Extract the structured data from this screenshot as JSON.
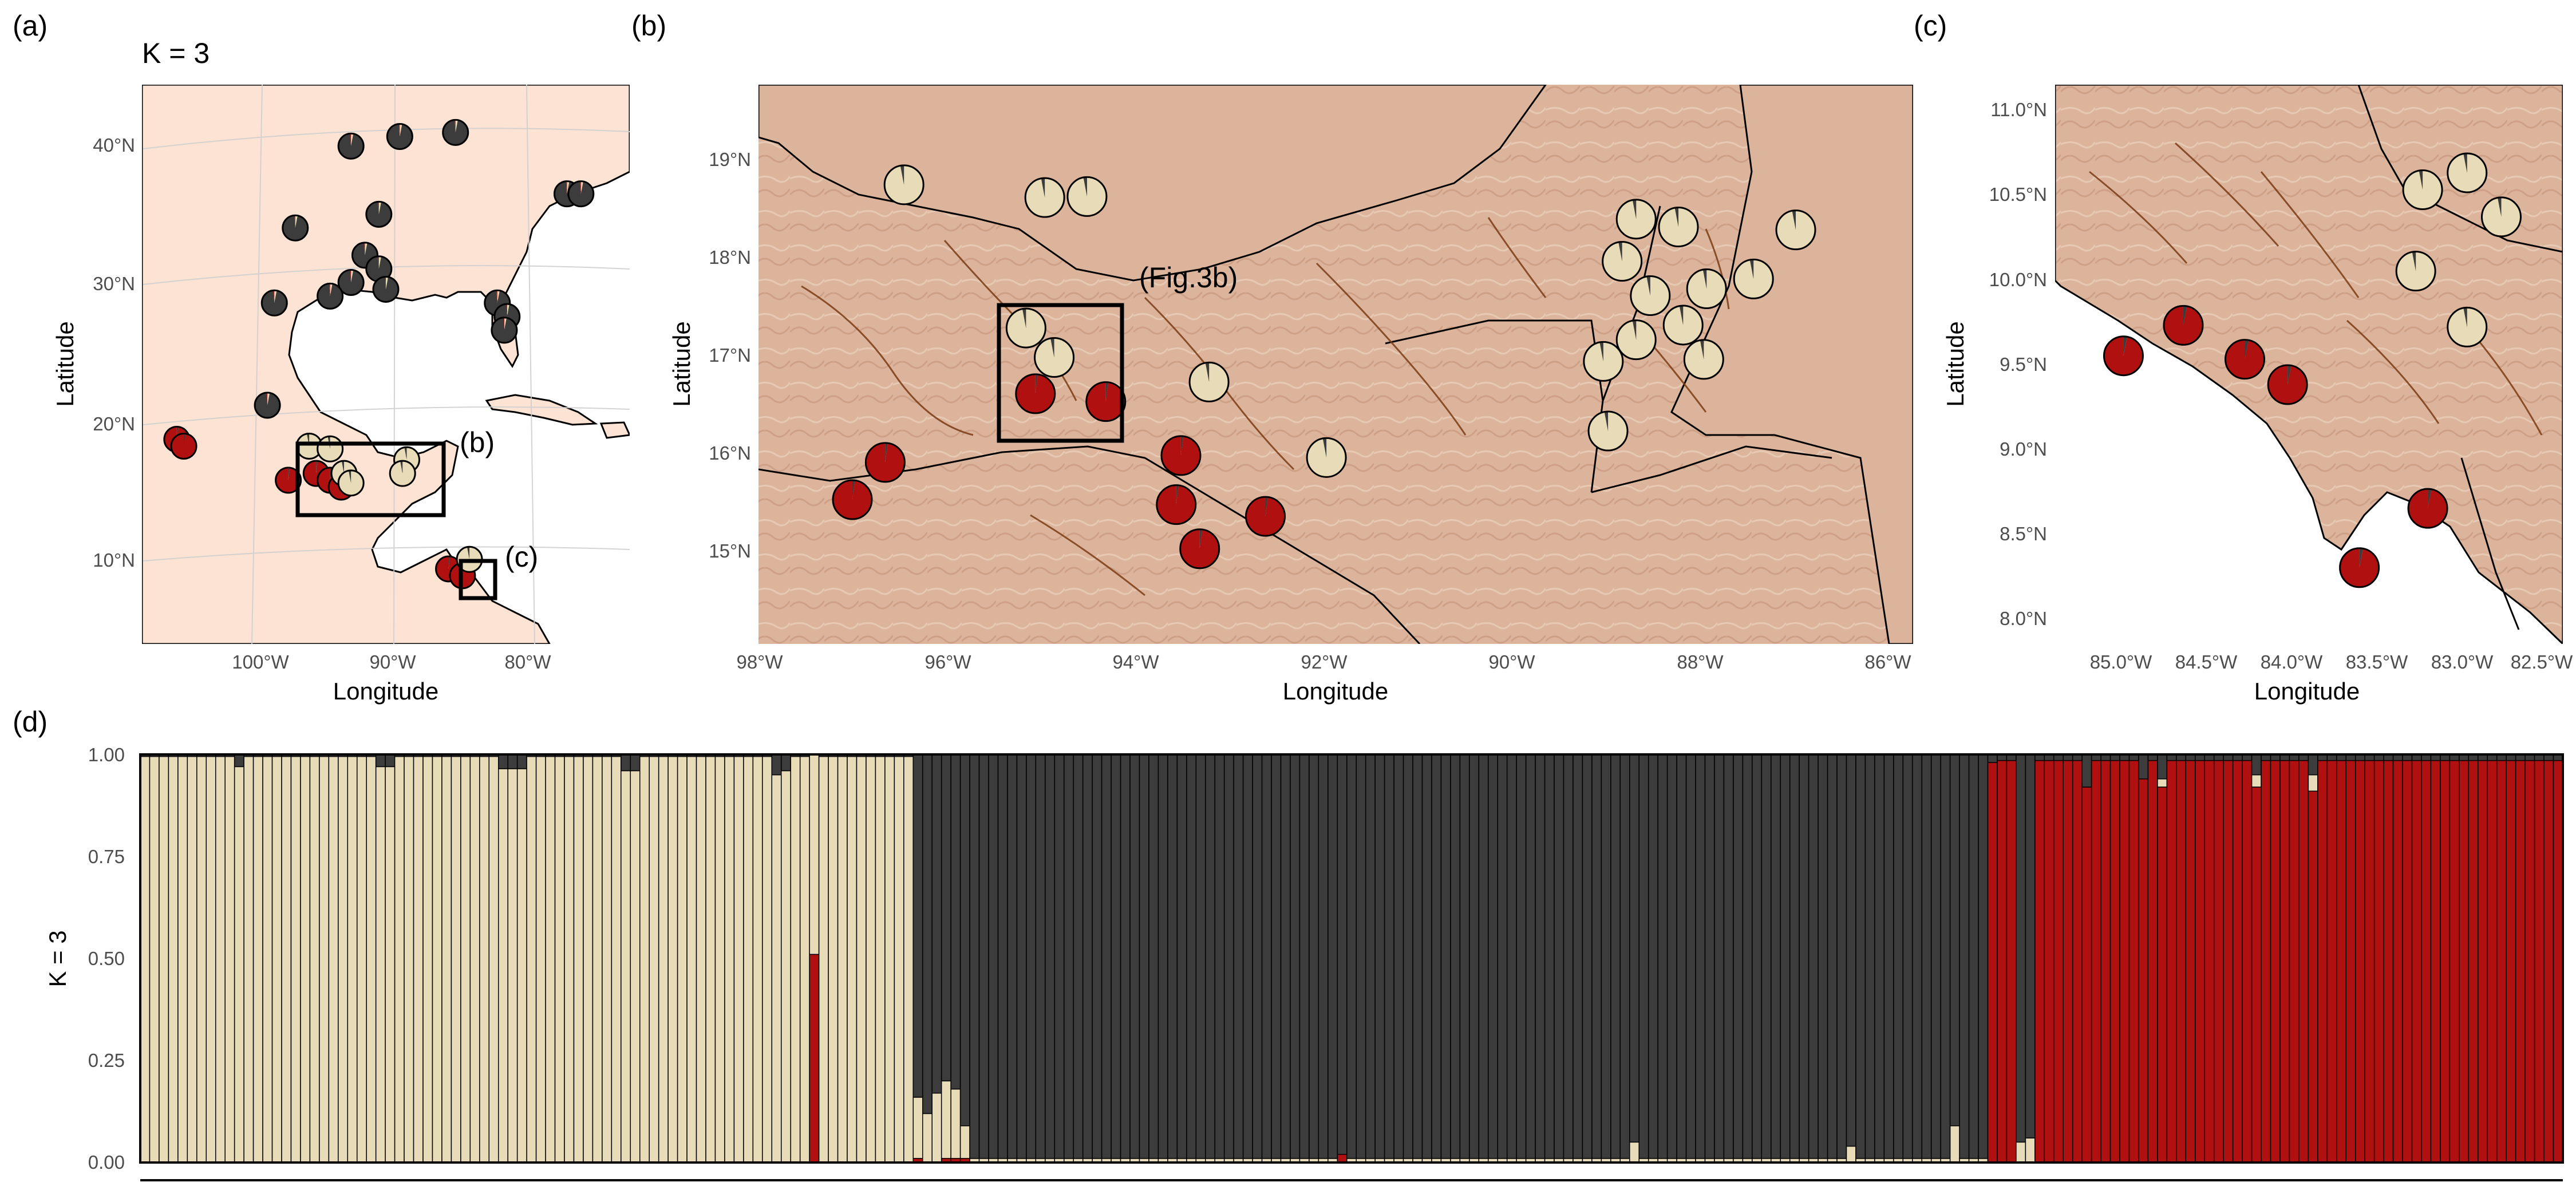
{
  "colors": {
    "cluster1": "#e8dcb8",
    "cluster2": "#3c3c3c",
    "cluster3": "#b01010",
    "land_a": "#fde3d3",
    "terrain": "#dcb49c",
    "ocean": "#ffffff",
    "river": "#7a3c14"
  },
  "chart_data": [
    {
      "panel": "(a)",
      "type": "scatter",
      "title": "K =  3",
      "xlabel": "Longitude",
      "ylabel": "Latitude",
      "xlim": [
        -107,
        -72
      ],
      "ylim": [
        4,
        45
      ],
      "x_ticks": [
        "100°W",
        "90°W",
        "80°W"
      ],
      "y_ticks": [
        "10°N",
        "20°N",
        "30°N",
        "40°N"
      ],
      "annotations": [
        "(b)",
        "(c)"
      ],
      "points": [
        {
          "lon": -92.0,
          "lat": 40.5,
          "q": [
            0.03,
            0.96,
            0.01
          ]
        },
        {
          "lon": -88.5,
          "lat": 41.2,
          "q": [
            0.03,
            0.96,
            0.01
          ]
        },
        {
          "lon": -84.5,
          "lat": 41.5,
          "q": [
            0.03,
            0.96,
            0.01
          ]
        },
        {
          "lon": -96.0,
          "lat": 34.5,
          "q": [
            0.03,
            0.96,
            0.01
          ]
        },
        {
          "lon": -90.0,
          "lat": 35.5,
          "q": [
            0.03,
            0.96,
            0.01
          ]
        },
        {
          "lon": -91.0,
          "lat": 32.5,
          "q": [
            0.03,
            0.96,
            0.01
          ]
        },
        {
          "lon": -90.0,
          "lat": 31.5,
          "q": [
            0.03,
            0.96,
            0.01
          ]
        },
        {
          "lon": -92.0,
          "lat": 30.5,
          "q": [
            0.03,
            0.96,
            0.01
          ]
        },
        {
          "lon": -93.5,
          "lat": 29.5,
          "q": [
            0.03,
            0.96,
            0.01
          ]
        },
        {
          "lon": -89.5,
          "lat": 30.0,
          "q": [
            0.03,
            0.96,
            0.01
          ]
        },
        {
          "lon": -97.5,
          "lat": 29.0,
          "q": [
            0.03,
            0.96,
            0.01
          ]
        },
        {
          "lon": -81.5,
          "lat": 29.0,
          "q": [
            0.03,
            0.96,
            0.01
          ]
        },
        {
          "lon": -80.8,
          "lat": 28.0,
          "q": [
            0.03,
            0.96,
            0.01
          ]
        },
        {
          "lon": -81.0,
          "lat": 27.0,
          "q": [
            0.03,
            0.96,
            0.01
          ]
        },
        {
          "lon": -76.5,
          "lat": 37.0,
          "q": [
            0.03,
            0.96,
            0.01
          ]
        },
        {
          "lon": -75.5,
          "lat": 37.0,
          "q": [
            0.03,
            0.96,
            0.01
          ]
        },
        {
          "lon": -98.0,
          "lat": 21.5,
          "q": [
            0.03,
            0.96,
            0.01
          ]
        },
        {
          "lon": -104.5,
          "lat": 19.0,
          "q": [
            0.0,
            0.02,
            0.98
          ]
        },
        {
          "lon": -104.0,
          "lat": 18.5,
          "q": [
            0.0,
            0.02,
            0.98
          ]
        },
        {
          "lon": -96.5,
          "lat": 16.0,
          "q": [
            0.0,
            0.02,
            0.98
          ]
        },
        {
          "lon": -94.5,
          "lat": 16.5,
          "q": [
            0.0,
            0.02,
            0.98
          ]
        },
        {
          "lon": -93.5,
          "lat": 16.0,
          "q": [
            0.0,
            0.02,
            0.98
          ]
        },
        {
          "lon": -92.7,
          "lat": 15.5,
          "q": [
            0.0,
            0.02,
            0.98
          ]
        },
        {
          "lon": -95.0,
          "lat": 18.5,
          "q": [
            0.97,
            0.03,
            0.0
          ]
        },
        {
          "lon": -93.5,
          "lat": 18.3,
          "q": [
            0.97,
            0.03,
            0.0
          ]
        },
        {
          "lon": -92.5,
          "lat": 16.5,
          "q": [
            0.97,
            0.03,
            0.0
          ]
        },
        {
          "lon": -88.0,
          "lat": 17.5,
          "q": [
            0.97,
            0.03,
            0.0
          ]
        },
        {
          "lon": -88.3,
          "lat": 16.5,
          "q": [
            0.97,
            0.03,
            0.0
          ]
        },
        {
          "lon": -92.0,
          "lat": 15.8,
          "q": [
            0.97,
            0.03,
            0.0
          ]
        },
        {
          "lon": -85.0,
          "lat": 9.5,
          "q": [
            0.0,
            0.02,
            0.98
          ]
        },
        {
          "lon": -84.0,
          "lat": 9.0,
          "q": [
            0.0,
            0.02,
            0.98
          ]
        },
        {
          "lon": -83.5,
          "lat": 10.2,
          "q": [
            0.97,
            0.03,
            0.0
          ]
        }
      ]
    },
    {
      "panel": "(b)",
      "type": "scatter",
      "title": "",
      "xlabel": "Longitude",
      "ylabel": "Latitude",
      "xlim": [
        -98.05,
        -85.75
      ],
      "ylim": [
        14.0,
        19.7
      ],
      "x_ticks": [
        "98°W",
        "96°W",
        "94°W",
        "92°W",
        "90°W",
        "88°W",
        "86°W"
      ],
      "y_ticks": [
        "15°N",
        "16°N",
        "17°N",
        "18°N",
        "19°N"
      ],
      "annotations": [
        "(Fig.3b)"
      ],
      "points": [
        {
          "lon": -96.5,
          "lat": 18.68,
          "q": [
            0.97,
            0.03,
            0.0
          ]
        },
        {
          "lon": -95.0,
          "lat": 18.55,
          "q": [
            0.97,
            0.03,
            0.0
          ]
        },
        {
          "lon": -94.55,
          "lat": 18.56,
          "q": [
            0.97,
            0.03,
            0.0
          ]
        },
        {
          "lon": -95.2,
          "lat": 17.22,
          "q": [
            0.97,
            0.03,
            0.0
          ]
        },
        {
          "lon": -94.9,
          "lat": 16.92,
          "q": [
            0.97,
            0.03,
            0.0
          ]
        },
        {
          "lon": -93.25,
          "lat": 16.67,
          "q": [
            0.97,
            0.03,
            0.0
          ]
        },
        {
          "lon": -92.0,
          "lat": 15.9,
          "q": [
            0.97,
            0.03,
            0.0
          ]
        },
        {
          "lon": -95.1,
          "lat": 16.55,
          "q": [
            0.0,
            0.02,
            0.98
          ]
        },
        {
          "lon": -94.35,
          "lat": 16.47,
          "q": [
            0.0,
            0.02,
            0.98
          ]
        },
        {
          "lon": -96.7,
          "lat": 15.85,
          "q": [
            0.0,
            0.02,
            0.98
          ]
        },
        {
          "lon": -97.05,
          "lat": 15.47,
          "q": [
            0.0,
            0.02,
            0.98
          ]
        },
        {
          "lon": -93.55,
          "lat": 15.92,
          "q": [
            0.0,
            0.02,
            0.98
          ]
        },
        {
          "lon": -93.6,
          "lat": 15.42,
          "q": [
            0.0,
            0.02,
            0.98
          ]
        },
        {
          "lon": -93.35,
          "lat": 14.97,
          "q": [
            0.0,
            0.02,
            0.98
          ]
        },
        {
          "lon": -92.65,
          "lat": 15.3,
          "q": [
            0.0,
            0.02,
            0.98
          ]
        },
        {
          "lon": -88.7,
          "lat": 18.33,
          "q": [
            0.97,
            0.03,
            0.0
          ]
        },
        {
          "lon": -88.85,
          "lat": 17.9,
          "q": [
            0.97,
            0.03,
            0.0
          ]
        },
        {
          "lon": -88.25,
          "lat": 18.25,
          "q": [
            0.97,
            0.03,
            0.0
          ]
        },
        {
          "lon": -88.55,
          "lat": 17.55,
          "q": [
            0.97,
            0.03,
            0.0
          ]
        },
        {
          "lon": -87.95,
          "lat": 17.62,
          "q": [
            0.97,
            0.03,
            0.0
          ]
        },
        {
          "lon": -88.7,
          "lat": 17.1,
          "q": [
            0.97,
            0.03,
            0.0
          ]
        },
        {
          "lon": -88.2,
          "lat": 17.25,
          "q": [
            0.97,
            0.03,
            0.0
          ]
        },
        {
          "lon": -87.45,
          "lat": 17.72,
          "q": [
            0.97,
            0.03,
            0.0
          ]
        },
        {
          "lon": -87.0,
          "lat": 18.22,
          "q": [
            0.97,
            0.03,
            0.0
          ]
        },
        {
          "lon": -89.05,
          "lat": 16.88,
          "q": [
            0.97,
            0.03,
            0.0
          ]
        },
        {
          "lon": -87.98,
          "lat": 16.9,
          "q": [
            0.97,
            0.03,
            0.0
          ]
        },
        {
          "lon": -89.0,
          "lat": 16.17,
          "q": [
            0.97,
            0.03,
            0.0
          ]
        }
      ]
    },
    {
      "panel": "(c)",
      "type": "scatter",
      "title": "",
      "xlabel": "Longitude",
      "ylabel": "Latitude",
      "xlim": [
        -85.38,
        -82.41
      ],
      "ylim": [
        7.85,
        11.15
      ],
      "x_ticks": [
        "85.0°W",
        "84.5°W",
        "84.0°W",
        "83.5°W",
        "83.0°W",
        "82.5°W"
      ],
      "y_ticks": [
        "8.0°N",
        "8.5°N",
        "9.0°N",
        "9.5°N",
        "10.0°N",
        "10.5°N",
        "11.0°N"
      ],
      "annotations": [],
      "points": [
        {
          "lon": -84.98,
          "lat": 9.55,
          "q": [
            0.0,
            0.03,
            0.97
          ]
        },
        {
          "lon": -84.63,
          "lat": 9.73,
          "q": [
            0.0,
            0.03,
            0.97
          ]
        },
        {
          "lon": -84.27,
          "lat": 9.53,
          "q": [
            0.0,
            0.03,
            0.97
          ]
        },
        {
          "lon": -84.02,
          "lat": 9.38,
          "q": [
            0.0,
            0.03,
            0.97
          ]
        },
        {
          "lon": -83.6,
          "lat": 8.3,
          "q": [
            0.0,
            0.03,
            0.97
          ]
        },
        {
          "lon": -83.2,
          "lat": 8.65,
          "q": [
            0.0,
            0.03,
            0.97
          ]
        },
        {
          "lon": -83.23,
          "lat": 10.53,
          "q": [
            0.97,
            0.03,
            0.0
          ]
        },
        {
          "lon": -82.97,
          "lat": 10.63,
          "q": [
            0.97,
            0.03,
            0.0
          ]
        },
        {
          "lon": -82.77,
          "lat": 10.37,
          "q": [
            0.97,
            0.03,
            0.0
          ]
        },
        {
          "lon": -83.27,
          "lat": 10.05,
          "q": [
            0.97,
            0.03,
            0.0
          ]
        },
        {
          "lon": -82.97,
          "lat": 9.72,
          "q": [
            0.97,
            0.03,
            0.0
          ]
        }
      ]
    },
    {
      "panel": "(d)",
      "type": "bar",
      "stacked": true,
      "title": "",
      "xlabel": "",
      "ylabel": "K = 3",
      "ylim": [
        0,
        1
      ],
      "y_ticks": [
        "0.00",
        "0.25",
        "0.50",
        "0.75",
        "1.00"
      ],
      "n_individuals": 257,
      "series": [
        {
          "color": "cluster1"
        },
        {
          "color": "cluster2"
        },
        {
          "color": "cluster3"
        }
      ],
      "groups": [
        {
          "count": 82,
          "q": [
            0.995,
            0.005,
            0.0
          ]
        },
        {
          "count": 5,
          "q": [
            0.15,
            0.84,
            0.01
          ]
        },
        {
          "count": 109,
          "q": [
            0.01,
            0.99,
            0.0
          ]
        },
        {
          "count": 61,
          "q": [
            0.0,
            0.015,
            0.985
          ]
        }
      ],
      "exceptions": [
        {
          "index": 71,
          "q": [
            0.49,
            0.0,
            0.51
          ]
        },
        {
          "index": 51,
          "q": [
            0.96,
            0.04,
            0.0
          ]
        },
        {
          "index": 52,
          "q": [
            0.96,
            0.04,
            0.0
          ]
        },
        {
          "index": 10,
          "q": [
            0.97,
            0.03,
            0.0
          ]
        },
        {
          "index": 25,
          "q": [
            0.97,
            0.03,
            0.0
          ]
        },
        {
          "index": 26,
          "q": [
            0.97,
            0.03,
            0.0
          ]
        },
        {
          "index": 38,
          "q": [
            0.965,
            0.035,
            0.0
          ]
        },
        {
          "index": 39,
          "q": [
            0.965,
            0.035,
            0.0
          ]
        },
        {
          "index": 40,
          "q": [
            0.965,
            0.035,
            0.0
          ]
        },
        {
          "index": 67,
          "q": [
            0.95,
            0.05,
            0.0
          ]
        },
        {
          "index": 68,
          "q": [
            0.96,
            0.04,
            0.0
          ]
        },
        {
          "index": 83,
          "q": [
            0.12,
            0.88,
            0.0
          ]
        },
        {
          "index": 84,
          "q": [
            0.17,
            0.83,
            0.0
          ]
        },
        {
          "index": 85,
          "q": [
            0.19,
            0.8,
            0.01
          ]
        },
        {
          "index": 86,
          "q": [
            0.17,
            0.82,
            0.01
          ]
        },
        {
          "index": 87,
          "q": [
            0.08,
            0.91,
            0.01
          ]
        },
        {
          "index": 181,
          "q": [
            0.04,
            0.96,
            0.0
          ]
        },
        {
          "index": 192,
          "q": [
            0.09,
            0.91,
            0.0
          ]
        },
        {
          "index": 199,
          "q": [
            0.05,
            0.95,
            0.0
          ]
        },
        {
          "index": 200,
          "q": [
            0.06,
            0.94,
            0.0
          ]
        },
        {
          "index": 158,
          "q": [
            0.05,
            0.95,
            0.0
          ]
        },
        {
          "index": 127,
          "q": [
            0.0,
            0.98,
            0.02
          ]
        },
        {
          "index": 206,
          "q": [
            0.0,
            0.08,
            0.92
          ]
        },
        {
          "index": 212,
          "q": [
            0.0,
            0.06,
            0.94
          ]
        },
        {
          "index": 214,
          "q": [
            0.02,
            0.06,
            0.92
          ]
        },
        {
          "index": 224,
          "q": [
            0.03,
            0.05,
            0.92
          ]
        },
        {
          "index": 230,
          "q": [
            0.04,
            0.05,
            0.91
          ]
        },
        {
          "index": 196,
          "q": [
            0.0,
            0.02,
            0.98
          ]
        }
      ]
    }
  ]
}
